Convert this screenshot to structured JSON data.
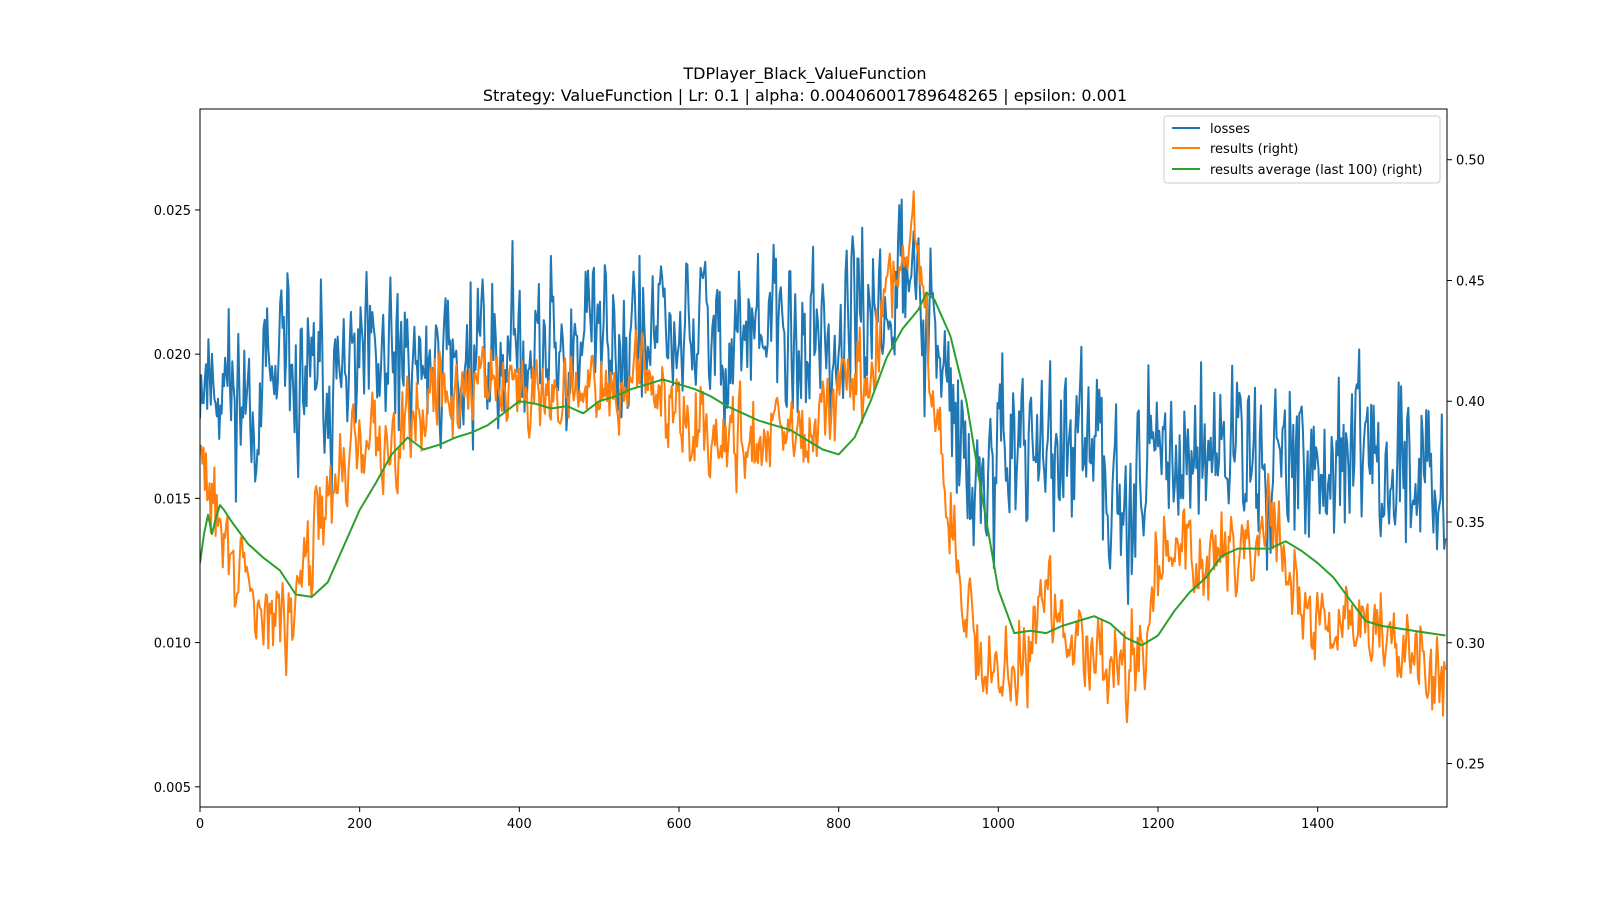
{
  "chart_data": {
    "type": "line",
    "title": "TDPlayer_Black_ValueFunction",
    "subtitle": "Strategy: ValueFunction | Lr: 0.1 | alpha: 0.00406001789648265 | epsilon: 0.001",
    "xlim": [
      0,
      1562
    ],
    "ylim_left": [
      0.0043,
      0.0285
    ],
    "ylim_right": [
      0.232,
      0.521
    ],
    "x_ticks": [
      "0",
      "200",
      "400",
      "600",
      "800",
      "1000",
      "1200",
      "1400"
    ],
    "x_tick_values": [
      0,
      200,
      400,
      600,
      800,
      1000,
      1200,
      1400
    ],
    "y_left_ticks": [
      "0.005",
      "0.010",
      "0.015",
      "0.020",
      "0.025"
    ],
    "y_left_tick_values": [
      0.005,
      0.01,
      0.015,
      0.02,
      0.025
    ],
    "y_right_ticks": [
      "0.25",
      "0.30",
      "0.35",
      "0.40",
      "0.45",
      "0.50"
    ],
    "y_right_tick_values": [
      0.25,
      0.3,
      0.35,
      0.4,
      0.45,
      0.5
    ],
    "legend_position": "top-right",
    "series": [
      {
        "name": "losses",
        "axis": "left",
        "color": "#1f77b4",
        "x": [
          0,
          20,
          40,
          60,
          80,
          100,
          120,
          140,
          160,
          180,
          200,
          220,
          240,
          260,
          280,
          300,
          320,
          340,
          360,
          380,
          400,
          420,
          440,
          460,
          480,
          500,
          520,
          540,
          560,
          580,
          600,
          620,
          640,
          660,
          680,
          700,
          720,
          740,
          760,
          780,
          800,
          820,
          840,
          860,
          880,
          900,
          920,
          940,
          960,
          980,
          1000,
          1020,
          1040,
          1060,
          1080,
          1100,
          1120,
          1140,
          1160,
          1180,
          1200,
          1220,
          1240,
          1260,
          1280,
          1300,
          1320,
          1340,
          1360,
          1380,
          1400,
          1420,
          1440,
          1460,
          1480,
          1500,
          1520,
          1540,
          1560
        ],
        "mean": [
          0.0195,
          0.0192,
          0.0188,
          0.0186,
          0.0186,
          0.0188,
          0.019,
          0.0189,
          0.0189,
          0.019,
          0.0192,
          0.0193,
          0.0194,
          0.0195,
          0.0196,
          0.0198,
          0.0199,
          0.02,
          0.02,
          0.0201,
          0.0202,
          0.0202,
          0.0203,
          0.0204,
          0.0205,
          0.0205,
          0.0206,
          0.0206,
          0.0207,
          0.0207,
          0.0206,
          0.0207,
          0.0207,
          0.0206,
          0.0206,
          0.0205,
          0.0205,
          0.0205,
          0.0204,
          0.0204,
          0.0205,
          0.0208,
          0.0215,
          0.0222,
          0.0226,
          0.0222,
          0.0205,
          0.018,
          0.0158,
          0.015,
          0.016,
          0.0168,
          0.0167,
          0.0164,
          0.0163,
          0.0164,
          0.0163,
          0.016,
          0.0158,
          0.016,
          0.0164,
          0.0167,
          0.0168,
          0.0166,
          0.0168,
          0.017,
          0.0167,
          0.0165,
          0.0165,
          0.0163,
          0.0162,
          0.0161,
          0.0161,
          0.016,
          0.016,
          0.0159,
          0.0158,
          0.0158,
          0.0158
        ],
        "noise": 0.0021,
        "ymin": 0.0054,
        "ymax": 0.0273,
        "seed": 11
      },
      {
        "name": "results (right)",
        "axis": "right",
        "color": "#ff7f0e",
        "x": [
          0,
          20,
          40,
          60,
          80,
          100,
          120,
          140,
          160,
          180,
          200,
          220,
          240,
          260,
          280,
          300,
          320,
          340,
          360,
          380,
          400,
          420,
          440,
          460,
          480,
          500,
          520,
          540,
          560,
          580,
          600,
          620,
          640,
          660,
          680,
          700,
          720,
          740,
          760,
          780,
          800,
          820,
          840,
          860,
          880,
          900,
          920,
          940,
          960,
          980,
          1000,
          1020,
          1040,
          1060,
          1080,
          1100,
          1120,
          1140,
          1160,
          1180,
          1200,
          1220,
          1240,
          1260,
          1280,
          1300,
          1320,
          1340,
          1360,
          1380,
          1400,
          1420,
          1440,
          1460,
          1480,
          1500,
          1520,
          1540,
          1560
        ],
        "mean": [
          0.375,
          0.355,
          0.335,
          0.32,
          0.312,
          0.305,
          0.325,
          0.345,
          0.36,
          0.372,
          0.382,
          0.386,
          0.39,
          0.394,
          0.398,
          0.402,
          0.406,
          0.408,
          0.412,
          0.415,
          0.408,
          0.404,
          0.4,
          0.402,
          0.4,
          0.405,
          0.406,
          0.404,
          0.41,
          0.405,
          0.395,
          0.388,
          0.386,
          0.384,
          0.384,
          0.386,
          0.385,
          0.383,
          0.381,
          0.39,
          0.41,
          0.405,
          0.4,
          0.448,
          0.452,
          0.468,
          0.4,
          0.35,
          0.31,
          0.285,
          0.285,
          0.29,
          0.3,
          0.32,
          0.3,
          0.302,
          0.3,
          0.298,
          0.29,
          0.305,
          0.33,
          0.345,
          0.34,
          0.333,
          0.34,
          0.335,
          0.34,
          0.35,
          0.335,
          0.315,
          0.308,
          0.305,
          0.306,
          0.305,
          0.303,
          0.3,
          0.298,
          0.295,
          0.292
        ],
        "noise": 0.013,
        "ymin": 0.245,
        "ymax": 0.505,
        "seed": 29
      },
      {
        "name": "results average (last 100) (right)",
        "axis": "right",
        "color": "#2ca02c",
        "x": [
          0,
          5,
          10,
          15,
          20,
          25,
          30,
          40,
          60,
          80,
          100,
          120,
          140,
          160,
          180,
          200,
          220,
          240,
          260,
          280,
          300,
          320,
          340,
          360,
          380,
          400,
          420,
          440,
          460,
          480,
          500,
          520,
          540,
          560,
          580,
          600,
          620,
          640,
          660,
          680,
          700,
          720,
          740,
          760,
          780,
          800,
          820,
          840,
          860,
          880,
          900,
          910,
          920,
          940,
          960,
          980,
          1000,
          1020,
          1040,
          1060,
          1080,
          1100,
          1120,
          1140,
          1160,
          1180,
          1200,
          1220,
          1240,
          1260,
          1280,
          1300,
          1320,
          1340,
          1360,
          1380,
          1400,
          1420,
          1440,
          1460,
          1480,
          1500,
          1520,
          1540,
          1560
        ],
        "values": [
          0.333,
          0.345,
          0.353,
          0.345,
          0.352,
          0.357,
          0.355,
          0.35,
          0.341,
          0.335,
          0.33,
          0.32,
          0.319,
          0.325,
          0.34,
          0.355,
          0.366,
          0.378,
          0.385,
          0.38,
          0.382,
          0.385,
          0.387,
          0.39,
          0.395,
          0.4,
          0.399,
          0.397,
          0.398,
          0.395,
          0.4,
          0.402,
          0.405,
          0.407,
          0.409,
          0.407,
          0.405,
          0.402,
          0.398,
          0.395,
          0.392,
          0.39,
          0.388,
          0.384,
          0.38,
          0.378,
          0.385,
          0.4,
          0.418,
          0.43,
          0.438,
          0.445,
          0.442,
          0.427,
          0.4,
          0.36,
          0.322,
          0.304,
          0.305,
          0.304,
          0.307,
          0.309,
          0.311,
          0.308,
          0.302,
          0.299,
          0.303,
          0.313,
          0.321,
          0.327,
          0.336,
          0.339,
          0.339,
          0.339,
          0.342,
          0.338,
          0.333,
          0.327,
          0.318,
          0.309,
          0.307,
          0.306,
          0.305,
          0.304,
          0.303
        ]
      }
    ]
  }
}
